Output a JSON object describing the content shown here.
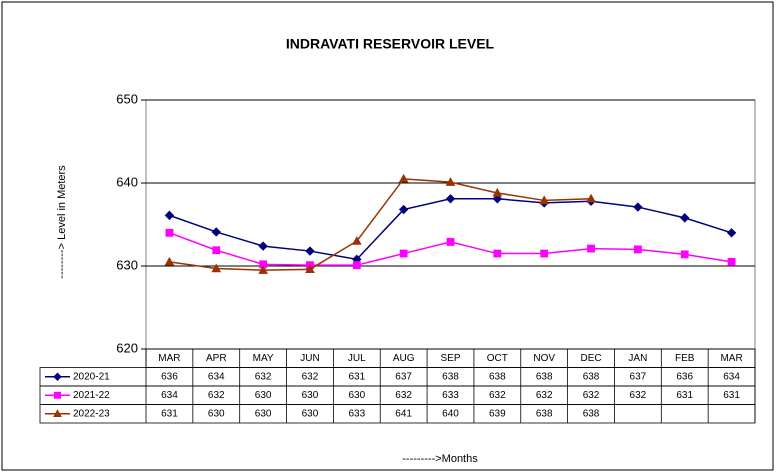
{
  "chart_data": {
    "type": "line",
    "title": "INDRAVATI RESERVOIR LEVEL",
    "x_label": "--------->Months",
    "y_label": "--------> Level in Meters",
    "categories": [
      "MAR",
      "APR",
      "MAY",
      "JUN",
      "JUL",
      "AUG",
      "SEP",
      "OCT",
      "NOV",
      "DEC",
      "JAN",
      "FEB",
      "MAR"
    ],
    "ylim": [
      620,
      650
    ],
    "yticks": [
      620,
      630,
      640,
      650
    ],
    "grid": true,
    "series": [
      {
        "name": "2020-21",
        "color": "#000080",
        "marker": "diamond",
        "values": [
          636.1,
          634.1,
          632.4,
          631.8,
          630.8,
          636.8,
          638.1,
          638.1,
          637.6,
          637.8,
          637.1,
          635.8,
          634.0
        ],
        "value_labels": [
          "636",
          "634",
          "632",
          "632",
          "631",
          "637",
          "638",
          "638",
          "638",
          "638",
          "637",
          "636",
          "634"
        ]
      },
      {
        "name": "2021-22",
        "color": "#ff00ff",
        "marker": "square",
        "values": [
          634.0,
          631.9,
          630.2,
          630.1,
          630.1,
          631.5,
          632.9,
          631.5,
          631.5,
          632.1,
          632.0,
          631.4,
          630.5
        ],
        "value_labels": [
          "634",
          "632",
          "630",
          "630",
          "630",
          "632",
          "633",
          "632",
          "632",
          "632",
          "632",
          "631",
          "631"
        ]
      },
      {
        "name": "2022-23",
        "color": "#993300",
        "marker": "triangle",
        "values": [
          630.5,
          629.7,
          629.5,
          629.6,
          633.0,
          640.5,
          640.1,
          638.8,
          637.9,
          638.1,
          null,
          null,
          null
        ],
        "value_labels": [
          "631",
          "630",
          "630",
          "630",
          "633",
          "641",
          "640",
          "639",
          "638",
          "638",
          null,
          null,
          null
        ]
      }
    ]
  }
}
